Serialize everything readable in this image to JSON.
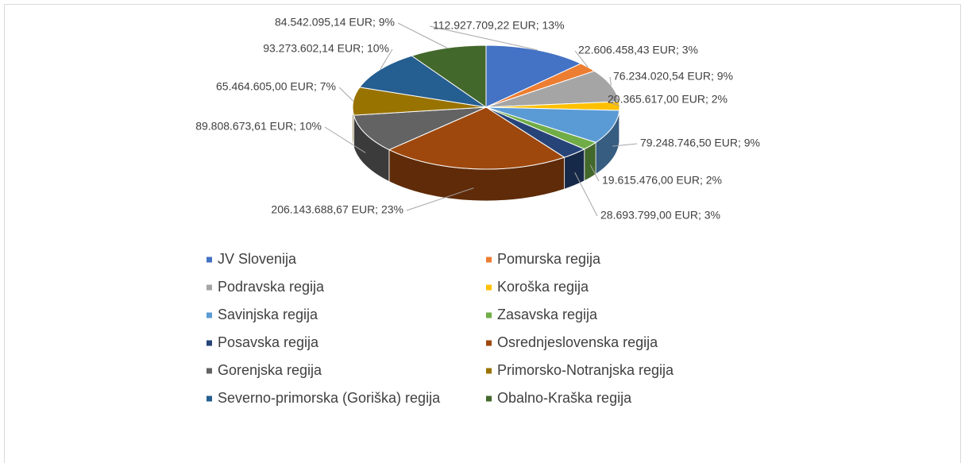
{
  "chart_data": {
    "type": "pie",
    "categories": [
      "JV Slovenija",
      "Pomurska regija",
      "Podravska regija",
      "Koroška regija",
      "Savinjska regija",
      "Zasavska regija",
      "Posavska regija",
      "Osrednjeslovenska regija",
      "Gorenjska regija",
      "Primorsko-Notranjska regija",
      "Severno-primorska (Goriška) regija",
      "Obalno-Kraška regija"
    ],
    "values": [
      112927709.22,
      22606458.43,
      76234020.54,
      20365617.0,
      79248746.5,
      19615476.0,
      28693799.0,
      206143688.67,
      89808673.61,
      65464605.0,
      93273602.14,
      84542095.14
    ],
    "value_labels": [
      "112.927.709,22 EUR; 13%",
      "22.606.458,43 EUR; 3%",
      "76.234.020,54 EUR; 9%",
      "20.365.617,00 EUR; 2%",
      "79.248.746,50 EUR; 9%",
      "19.615.476,00 EUR; 2%",
      "28.693.799,00 EUR; 3%",
      "206.143.688,67 EUR; 23%",
      "89.808.673,61 EUR; 10%",
      "65.464.605,00 EUR; 7%",
      "93.273.602,14 EUR; 10%",
      "84.542.095,14 EUR; 9%"
    ],
    "colors": [
      "#4472c4",
      "#ed7d31",
      "#a5a5a5",
      "#ffc000",
      "#5b9bd5",
      "#70ad47",
      "#264478",
      "#9e480e",
      "#636363",
      "#997300",
      "#255e91",
      "#43682b"
    ],
    "legend": "bottom"
  }
}
